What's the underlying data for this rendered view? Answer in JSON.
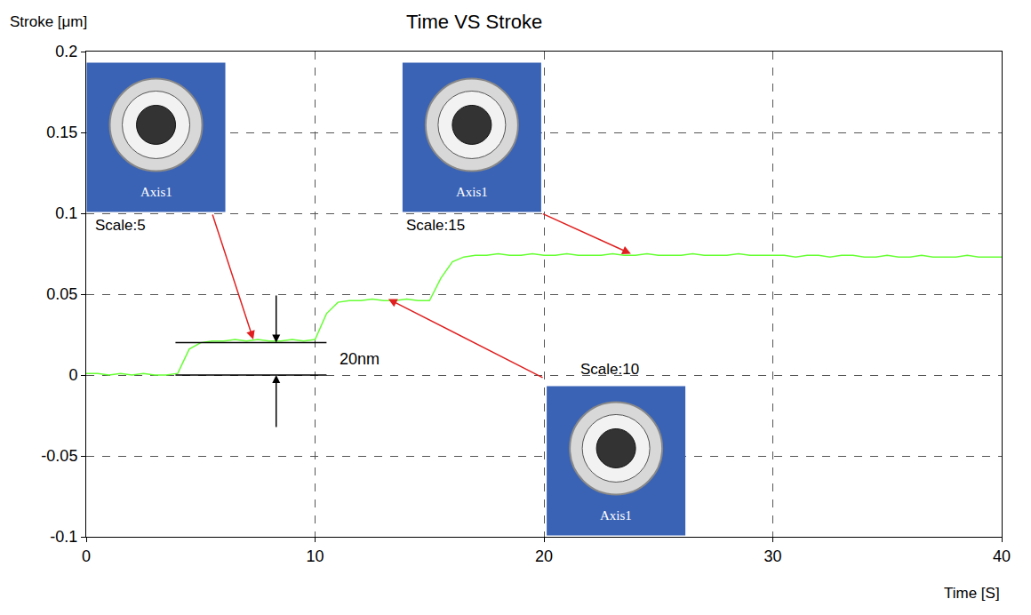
{
  "chart_data": {
    "type": "line",
    "title": "Time VS Stroke",
    "x_label": "Time [S]",
    "y_label": "Stroke [μm]",
    "x": [
      0,
      0.5,
      1,
      1.5,
      2,
      2.5,
      3,
      3.5,
      4,
      4.5,
      5,
      5.5,
      6,
      6.5,
      7,
      7.5,
      8,
      8.5,
      9,
      9.5,
      10,
      10.5,
      11,
      11.5,
      12,
      12.5,
      13,
      13.5,
      14,
      14.5,
      15,
      15.5,
      16,
      16.5,
      17,
      17.5,
      18,
      18.5,
      19,
      19.5,
      20,
      20.5,
      21,
      21.5,
      22,
      22.5,
      23,
      23.5,
      24,
      24.5,
      25,
      25.5,
      26,
      26.5,
      27,
      27.5,
      28,
      28.5,
      29,
      29.5,
      30,
      30.5,
      31,
      31.5,
      32,
      32.5,
      33,
      33.5,
      34,
      34.5,
      35,
      35.5,
      36,
      36.5,
      37,
      37.5,
      38,
      38.5,
      39,
      39.5,
      40
    ],
    "values": [
      0.001,
      0.001,
      0.0,
      0.001,
      0.0,
      0.001,
      0.0,
      0.0,
      0.001,
      0.016,
      0.02,
      0.021,
      0.021,
      0.022,
      0.021,
      0.022,
      0.021,
      0.021,
      0.022,
      0.021,
      0.022,
      0.038,
      0.045,
      0.046,
      0.046,
      0.047,
      0.046,
      0.046,
      0.047,
      0.046,
      0.046,
      0.06,
      0.07,
      0.073,
      0.074,
      0.074,
      0.075,
      0.074,
      0.074,
      0.075,
      0.074,
      0.074,
      0.075,
      0.074,
      0.074,
      0.074,
      0.075,
      0.074,
      0.074,
      0.075,
      0.074,
      0.074,
      0.074,
      0.075,
      0.074,
      0.074,
      0.074,
      0.075,
      0.074,
      0.074,
      0.074,
      0.074,
      0.073,
      0.074,
      0.074,
      0.073,
      0.074,
      0.074,
      0.073,
      0.073,
      0.074,
      0.073,
      0.073,
      0.074,
      0.073,
      0.073,
      0.073,
      0.074,
      0.073,
      0.073,
      0.073
    ],
    "color": "#66ff33",
    "xlim": [
      0,
      40
    ],
    "xticks": [
      0,
      10,
      20,
      30,
      40
    ],
    "ylim": [
      -0.1,
      0.2
    ],
    "yticks": [
      -0.1,
      -0.05,
      0,
      0.05,
      0.1,
      0.15,
      0.2
    ],
    "grid": true,
    "annotations": [
      {
        "text": "Scale:5",
        "x": 7.3,
        "y": 0.022
      },
      {
        "text": "Scale:10",
        "x": 13.2,
        "y": 0.047
      },
      {
        "text": "Scale:15",
        "x": 23.8,
        "y": 0.075
      }
    ],
    "dimension": {
      "text": "20nm",
      "from": 0,
      "to": 0.02
    },
    "image_label": "Axis1"
  }
}
